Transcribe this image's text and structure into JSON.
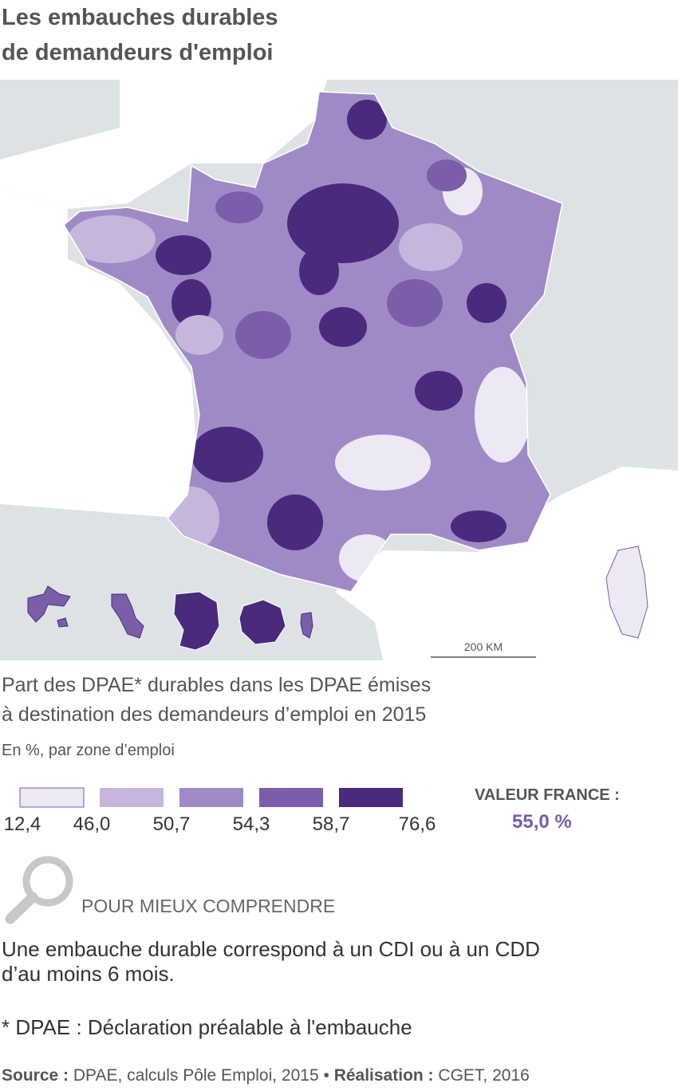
{
  "title": [
    "Les embauches durables",
    "de demandeurs d'emploi"
  ],
  "map": {
    "scale_label": "200 KM"
  },
  "legend": {
    "title": [
      "Part des DPAE* durables dans les DPAE émises",
      "à destination des demandeurs d’emploi en 2015"
    ],
    "subtitle": "En %, par zone d’emploi",
    "colors": [
      "#ece8f4",
      "#c6b6dc",
      "#a08ac6",
      "#7b5ea9",
      "#4a2a7d"
    ],
    "breaks": [
      {
        "value": 12.4,
        "label": "12,4"
      },
      {
        "value": 46.0,
        "label": "46,0"
      },
      {
        "value": 50.7,
        "label": "50,7"
      },
      {
        "value": 54.3,
        "label": "54,3"
      },
      {
        "value": 58.7,
        "label": "58,7"
      },
      {
        "value": 76.6,
        "label": "76,6"
      }
    ],
    "france_label": "VALEUR FRANCE :",
    "france_value": {
      "value": 55.0,
      "label": "55,0 %"
    }
  },
  "note": {
    "heading": "POUR MIEUX COMPRENDRE",
    "text": [
      "Une embauche durable correspond à un CDI ou à un CDD",
      "d’au moins 6 mois."
    ],
    "footnote": "* DPAE : Déclaration préalable à l'embauche"
  },
  "source": {
    "source_label": "Source :",
    "source_text": "DPAE, calculs Pôle Emploi, 2015",
    "separator": "•",
    "credit_label": "Réalisation :",
    "credit_text": "CGET, 2016"
  }
}
